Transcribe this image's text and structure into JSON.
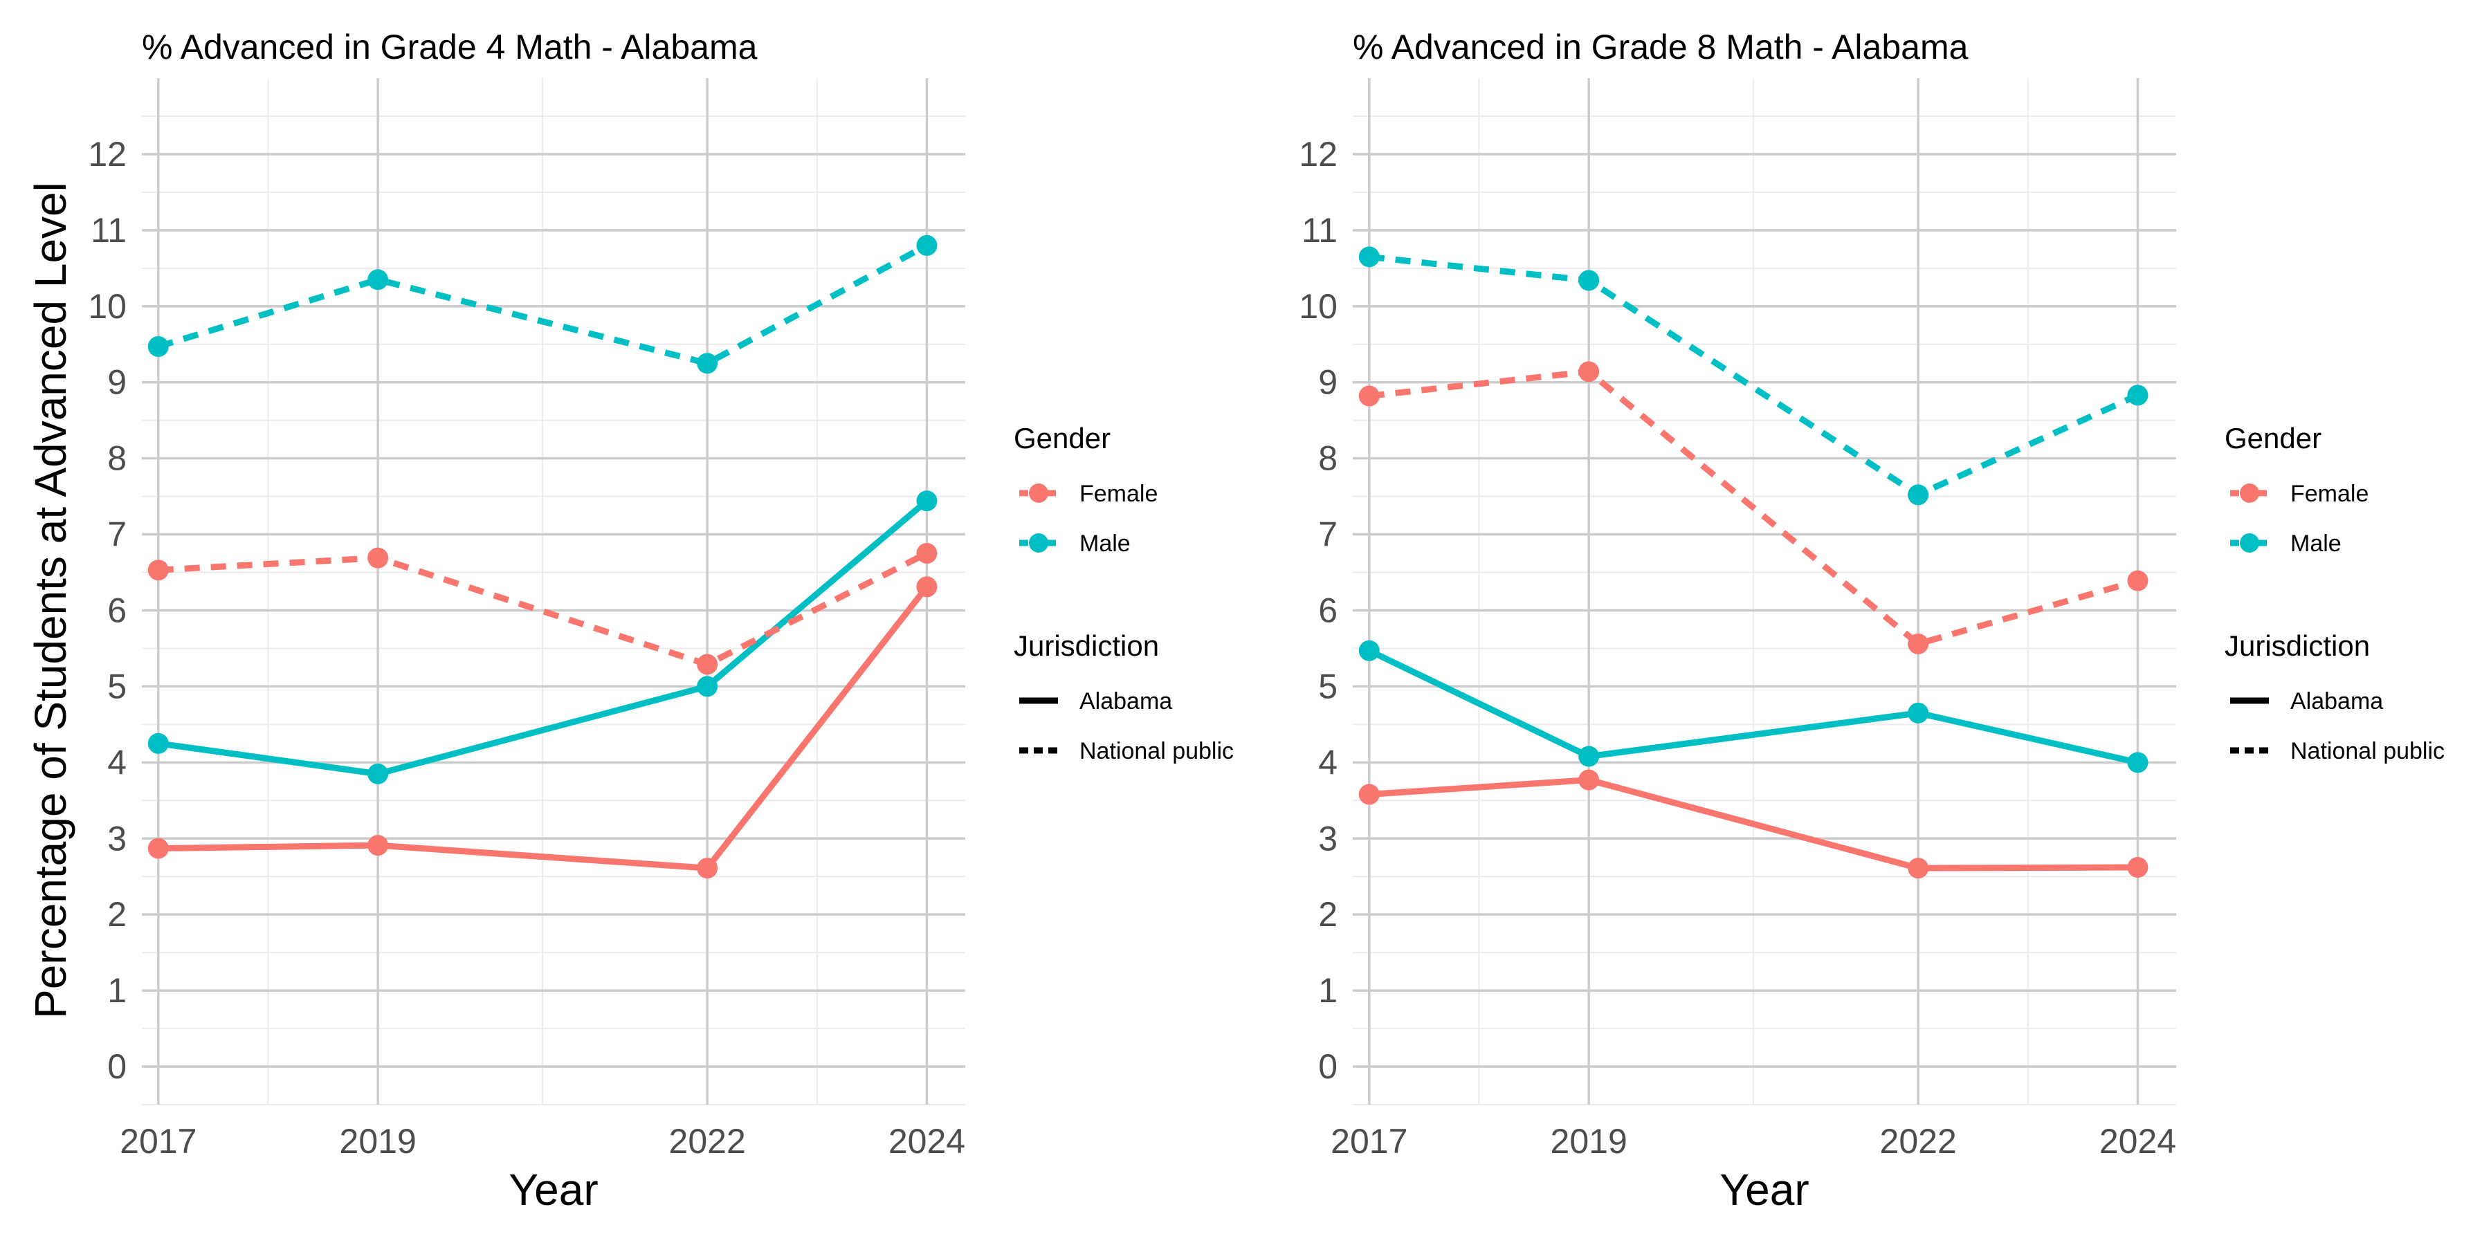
{
  "y_axis_title": "Percentage of Students at Advanced Level",
  "colors": {
    "Female": "#F8766D",
    "Male": "#00BFC4"
  },
  "chart_data": [
    {
      "type": "line",
      "title": "% Advanced in Grade 4 Math - Alabama",
      "xlabel": "Year",
      "ylabel": "Percentage of Students at Advanced Level",
      "x": [
        2017,
        2019,
        2022,
        2024
      ],
      "xlim": [
        2016.85,
        2024.35
      ],
      "ylim": [
        -0.5,
        13.0
      ],
      "yticks": [
        0,
        1,
        2,
        3,
        4,
        5,
        6,
        7,
        8,
        9,
        10,
        11,
        12
      ],
      "grid": true,
      "series": [
        {
          "gender": "Female",
          "jurisdiction": "Alabama",
          "values": [
            2.87,
            2.91,
            2.61,
            6.31
          ]
        },
        {
          "gender": "Male",
          "jurisdiction": "Alabama",
          "values": [
            4.25,
            3.85,
            5.0,
            7.44
          ]
        },
        {
          "gender": "Female",
          "jurisdiction": "National public",
          "values": [
            6.53,
            6.69,
            5.29,
            6.75
          ]
        },
        {
          "gender": "Male",
          "jurisdiction": "National public",
          "values": [
            9.47,
            10.35,
            9.25,
            10.8
          ]
        }
      ],
      "legend": {
        "placement": "right",
        "gender_title": "Gender",
        "gender_items": [
          "Female",
          "Male"
        ],
        "jurisdiction_title": "Jurisdiction",
        "jurisdiction_items": [
          "Alabama",
          "National public"
        ]
      }
    },
    {
      "type": "line",
      "title": "% Advanced in Grade 8 Math - Alabama",
      "xlabel": "Year",
      "ylabel": "",
      "x": [
        2017,
        2019,
        2022,
        2024
      ],
      "xlim": [
        2016.85,
        2024.35
      ],
      "ylim": [
        -0.5,
        13.0
      ],
      "yticks": [
        0,
        1,
        2,
        3,
        4,
        5,
        6,
        7,
        8,
        9,
        10,
        11,
        12
      ],
      "grid": true,
      "series": [
        {
          "gender": "Female",
          "jurisdiction": "Alabama",
          "values": [
            3.58,
            3.77,
            2.61,
            2.62
          ]
        },
        {
          "gender": "Male",
          "jurisdiction": "Alabama",
          "values": [
            5.47,
            4.08,
            4.65,
            4.0
          ]
        },
        {
          "gender": "Female",
          "jurisdiction": "National public",
          "values": [
            8.82,
            9.14,
            5.56,
            6.39
          ]
        },
        {
          "gender": "Male",
          "jurisdiction": "National public",
          "values": [
            10.65,
            10.34,
            7.52,
            8.83
          ]
        }
      ],
      "legend": {
        "placement": "right",
        "gender_title": "Gender",
        "gender_items": [
          "Female",
          "Male"
        ],
        "jurisdiction_title": "Jurisdiction",
        "jurisdiction_items": [
          "Alabama",
          "National public"
        ]
      }
    }
  ]
}
